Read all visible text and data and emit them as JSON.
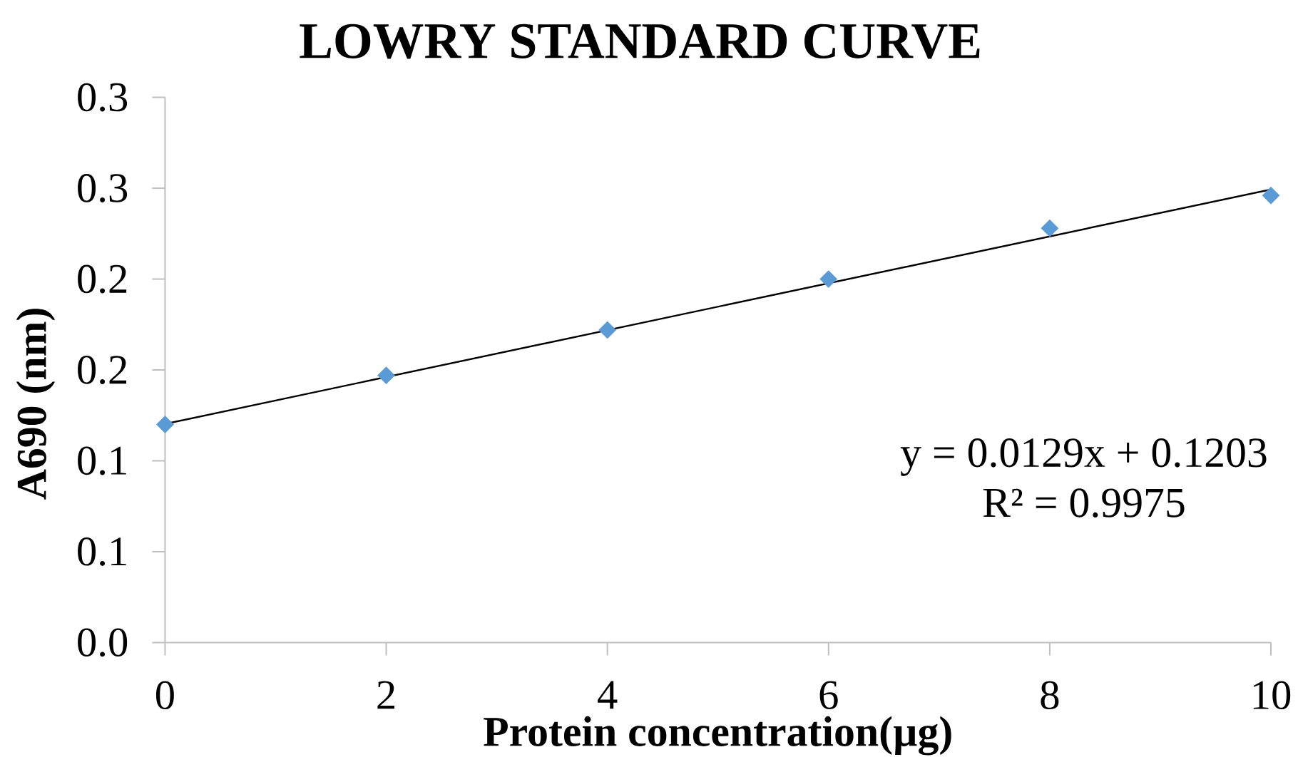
{
  "chart_data": {
    "type": "scatter",
    "title": "LOWRY STANDARD CURVE",
    "xlabel": "Protein concentration(µg)",
    "ylabel": "A690 (nm)",
    "series": [
      {
        "color": "#5b9bd5",
        "marker": "diamond",
        "x": [
          0,
          2,
          4,
          6,
          8,
          10
        ],
        "values": [
          0.12,
          0.147,
          0.172,
          0.2,
          0.228,
          0.246
        ]
      },
      {
        "type": "line",
        "color": "#000000",
        "line_style": "solid",
        "x": [
          0,
          10
        ],
        "values": [
          0.1203,
          0.2493
        ]
      }
    ],
    "xlim": [
      0,
      10
    ],
    "xticks": [
      0,
      2,
      4,
      6,
      8,
      10
    ],
    "ylim": [
      0,
      0.3
    ],
    "yticks": [
      {
        "value": 0,
        "label": "0.0"
      },
      {
        "value": 0.05,
        "label": "0.1"
      },
      0.1,
      {
        "value": 0.15,
        "label": "0.2"
      },
      0.2,
      {
        "value": 0.25,
        "label": "0.3"
      },
      0.3
    ],
    "annotations": [
      "y = 0.0129x + 0.1203",
      "R² = 0.9975"
    ]
  }
}
